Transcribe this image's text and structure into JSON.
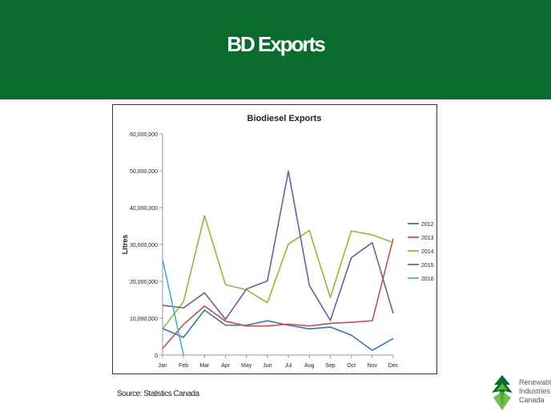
{
  "slide": {
    "title": "BD Exports",
    "source": "Source: Statistics Canada",
    "logo_lines": [
      "Renewable",
      "Industries",
      "Canada"
    ]
  },
  "colors": {
    "banner": "#0a6b2d",
    "logo_dark": "#0a6b2d",
    "logo_light": "#5bb531"
  },
  "chart_data": {
    "type": "line",
    "title": "Biodiesel Exports",
    "xlabel": "",
    "ylabel": "Litres",
    "categories": [
      "Jan",
      "Feb",
      "Mar",
      "Apr",
      "May",
      "Jun",
      "Jul",
      "Aug",
      "Sep",
      "Oct",
      "Nov",
      "Dec"
    ],
    "ylim": [
      0,
      60000000
    ],
    "yticks": [
      0,
      10000000,
      20000000,
      30000000,
      40000000,
      50000000,
      60000000
    ],
    "ytick_labels": [
      "0",
      "10,000,000",
      "20,000,000",
      "30,000,000",
      "40,000,000",
      "50,000,000",
      "60,000,000"
    ],
    "grid": false,
    "legend_position": "right",
    "series": [
      {
        "name": "2012",
        "color": "#3a73b5",
        "values": [
          7200000,
          4800000,
          12200000,
          8100000,
          8100000,
          9300000,
          8100000,
          7100000,
          7600000,
          5400000,
          1300000,
          4500000
        ]
      },
      {
        "name": "2013",
        "color": "#c0504d",
        "values": [
          1800000,
          8300000,
          13300000,
          9200000,
          7900000,
          7900000,
          8400000,
          7900000,
          8600000,
          8900000,
          9300000,
          31600000
        ]
      },
      {
        "name": "2014",
        "color": "#8dbb3a",
        "values": [
          7100000,
          14500000,
          37800000,
          19100000,
          17700000,
          14200000,
          30100000,
          33800000,
          15600000,
          33700000,
          32600000,
          30500000
        ]
      },
      {
        "name": "2015",
        "color": "#7b579e",
        "values": [
          13500000,
          12800000,
          16900000,
          9700000,
          17900000,
          20100000,
          49900000,
          18900000,
          9400000,
          26400000,
          30500000,
          11300000
        ]
      },
      {
        "name": "2016",
        "color": "#3eb3c6",
        "values": [
          25900000,
          0,
          null,
          null,
          null,
          null,
          null,
          null,
          null,
          null,
          null,
          null
        ]
      }
    ]
  }
}
